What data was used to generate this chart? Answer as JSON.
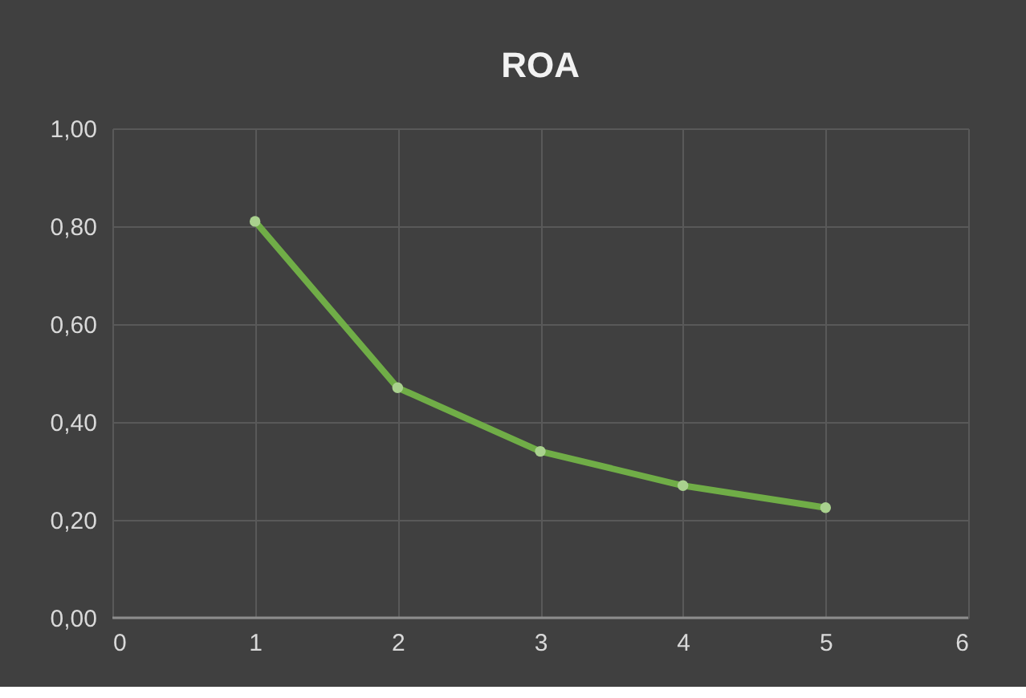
{
  "chart_data": {
    "type": "line",
    "title": "ROA",
    "x": [
      1,
      2,
      3,
      4,
      5
    ],
    "series": [
      {
        "color": "#70ad47",
        "values": [
          0.81,
          0.47,
          0.34,
          0.27,
          0.225
        ]
      }
    ],
    "xlim": [
      0,
      6
    ],
    "xticks": [
      0,
      1,
      2,
      3,
      4,
      5,
      6
    ],
    "ylim": [
      0,
      1
    ],
    "yticks": [
      {
        "value": 0,
        "label": "0,00"
      },
      {
        "value": 0.2,
        "label": "0,20"
      },
      {
        "value": 0.4,
        "label": "0,40"
      },
      {
        "value": 0.6,
        "label": "0,60"
      },
      {
        "value": 0.8,
        "label": "0,80"
      },
      {
        "value": 1,
        "label": "1,00"
      }
    ],
    "grid": true,
    "marker": "circle",
    "line_style": "solid"
  }
}
